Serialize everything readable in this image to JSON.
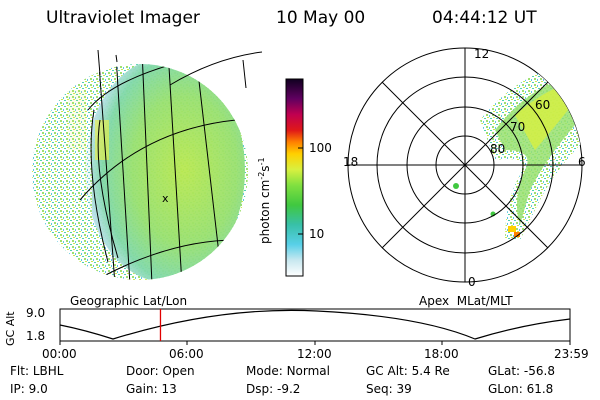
{
  "header": {
    "instrument": "Ultraviolet Imager",
    "date": "10 May 00",
    "time": "04:44:12 UT"
  },
  "left_image": {
    "caption": "Geographic Lat/Lon",
    "mark": "X"
  },
  "colorbar": {
    "unit_label": "photon cm",
    "unit_exp1": "-2",
    "unit_mid": "s",
    "unit_exp2": "-1",
    "ticks": [
      "100",
      "10"
    ]
  },
  "polar_plot": {
    "caption": "Apex  MLat/MLT",
    "mlt_labels": {
      "top": "12",
      "left": "18",
      "right": "6",
      "bottom": "0"
    },
    "lat_labels": [
      "60",
      "70",
      "80"
    ]
  },
  "timeline": {
    "ylabel": "GC Alt",
    "ytick_top": "9.0",
    "ytick_bottom": "1.8",
    "time_ticks": [
      "00:00",
      "06:00",
      "12:00",
      "18:00",
      "23:59"
    ],
    "current_time_fraction": 0.197,
    "marker_color": "#e00000"
  },
  "status": [
    [
      {
        "key": "Flt:",
        "value": "LBHL"
      },
      {
        "key": "Door:",
        "value": "Open"
      },
      {
        "key": "Mode:",
        "value": "Normal"
      },
      {
        "key": "GC Alt:",
        "value": "5.4 Re"
      },
      {
        "key": "GLat:",
        "value": "-56.8"
      }
    ],
    [
      {
        "key": "IP:",
        "value": "9.0"
      },
      {
        "key": "Gain:",
        "value": "13"
      },
      {
        "key": "Dsp:",
        "value": "-9.2"
      },
      {
        "key": "Seq:",
        "value": "39"
      },
      {
        "key": "GLon:",
        "value": "61.8"
      }
    ]
  ]
}
